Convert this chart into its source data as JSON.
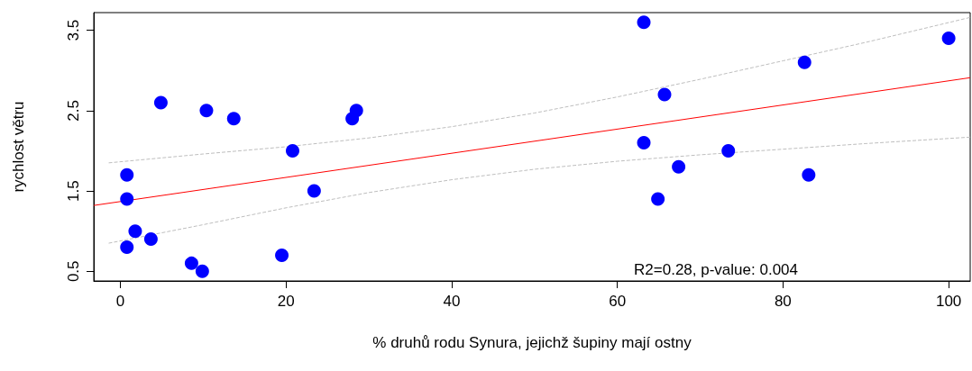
{
  "chart_data": {
    "type": "scatter",
    "xlabel": "% druhů rodu Synura, jejichž šupiny mají ostny",
    "ylabel": "rychlost větru",
    "xlim": [
      -3.2,
      102.6
    ],
    "ylim": [
      0.38,
      3.72
    ],
    "xticks": [
      0,
      20,
      40,
      60,
      80,
      100
    ],
    "yticks": [
      0.5,
      1.5,
      2.5,
      3.5
    ],
    "marker": "circle",
    "annotations": [
      "R2=0.28, p-value: 0.004"
    ],
    "series": [
      {
        "color": "#0000ff",
        "x": [
          0.8,
          0.8,
          0.8,
          1.8,
          3.7,
          4.9,
          8.6,
          9.9,
          10.4,
          13.7,
          19.5,
          20.8,
          23.4,
          28.0,
          28.5,
          63.2,
          63.2,
          64.9,
          65.7,
          67.4,
          73.4,
          82.6,
          83.1,
          100
        ],
        "values": [
          1.7,
          1.4,
          0.8,
          1.0,
          0.9,
          2.6,
          0.6,
          0.5,
          2.5,
          2.4,
          0.7,
          2.0,
          1.5,
          2.4,
          2.5,
          3.6,
          2.1,
          1.4,
          2.7,
          1.8,
          2.0,
          3.1,
          1.7,
          3.4
        ]
      },
      {
        "type": "line",
        "color": "#ff0000",
        "line_style": "solid",
        "marker": "none",
        "x": [
          -3.2,
          102.6
        ],
        "values": [
          1.32,
          2.91
        ]
      },
      {
        "type": "line",
        "color": "#bebebe",
        "line_style": "dashed",
        "marker": "none",
        "x": [
          -1.4,
          10,
          20,
          30,
          40,
          50,
          60,
          70,
          80,
          90,
          102.6
        ],
        "values": [
          1.85,
          1.96,
          2.05,
          2.16,
          2.3,
          2.47,
          2.67,
          2.89,
          3.12,
          3.35,
          3.66
        ]
      },
      {
        "type": "line",
        "color": "#bebebe",
        "line_style": "dashed",
        "marker": "none",
        "x": [
          -1.4,
          10,
          20,
          30,
          40,
          50,
          60,
          70,
          80,
          90,
          102.6
        ],
        "values": [
          0.85,
          1.08,
          1.29,
          1.48,
          1.64,
          1.77,
          1.87,
          1.95,
          2.02,
          2.09,
          2.17
        ]
      }
    ]
  }
}
